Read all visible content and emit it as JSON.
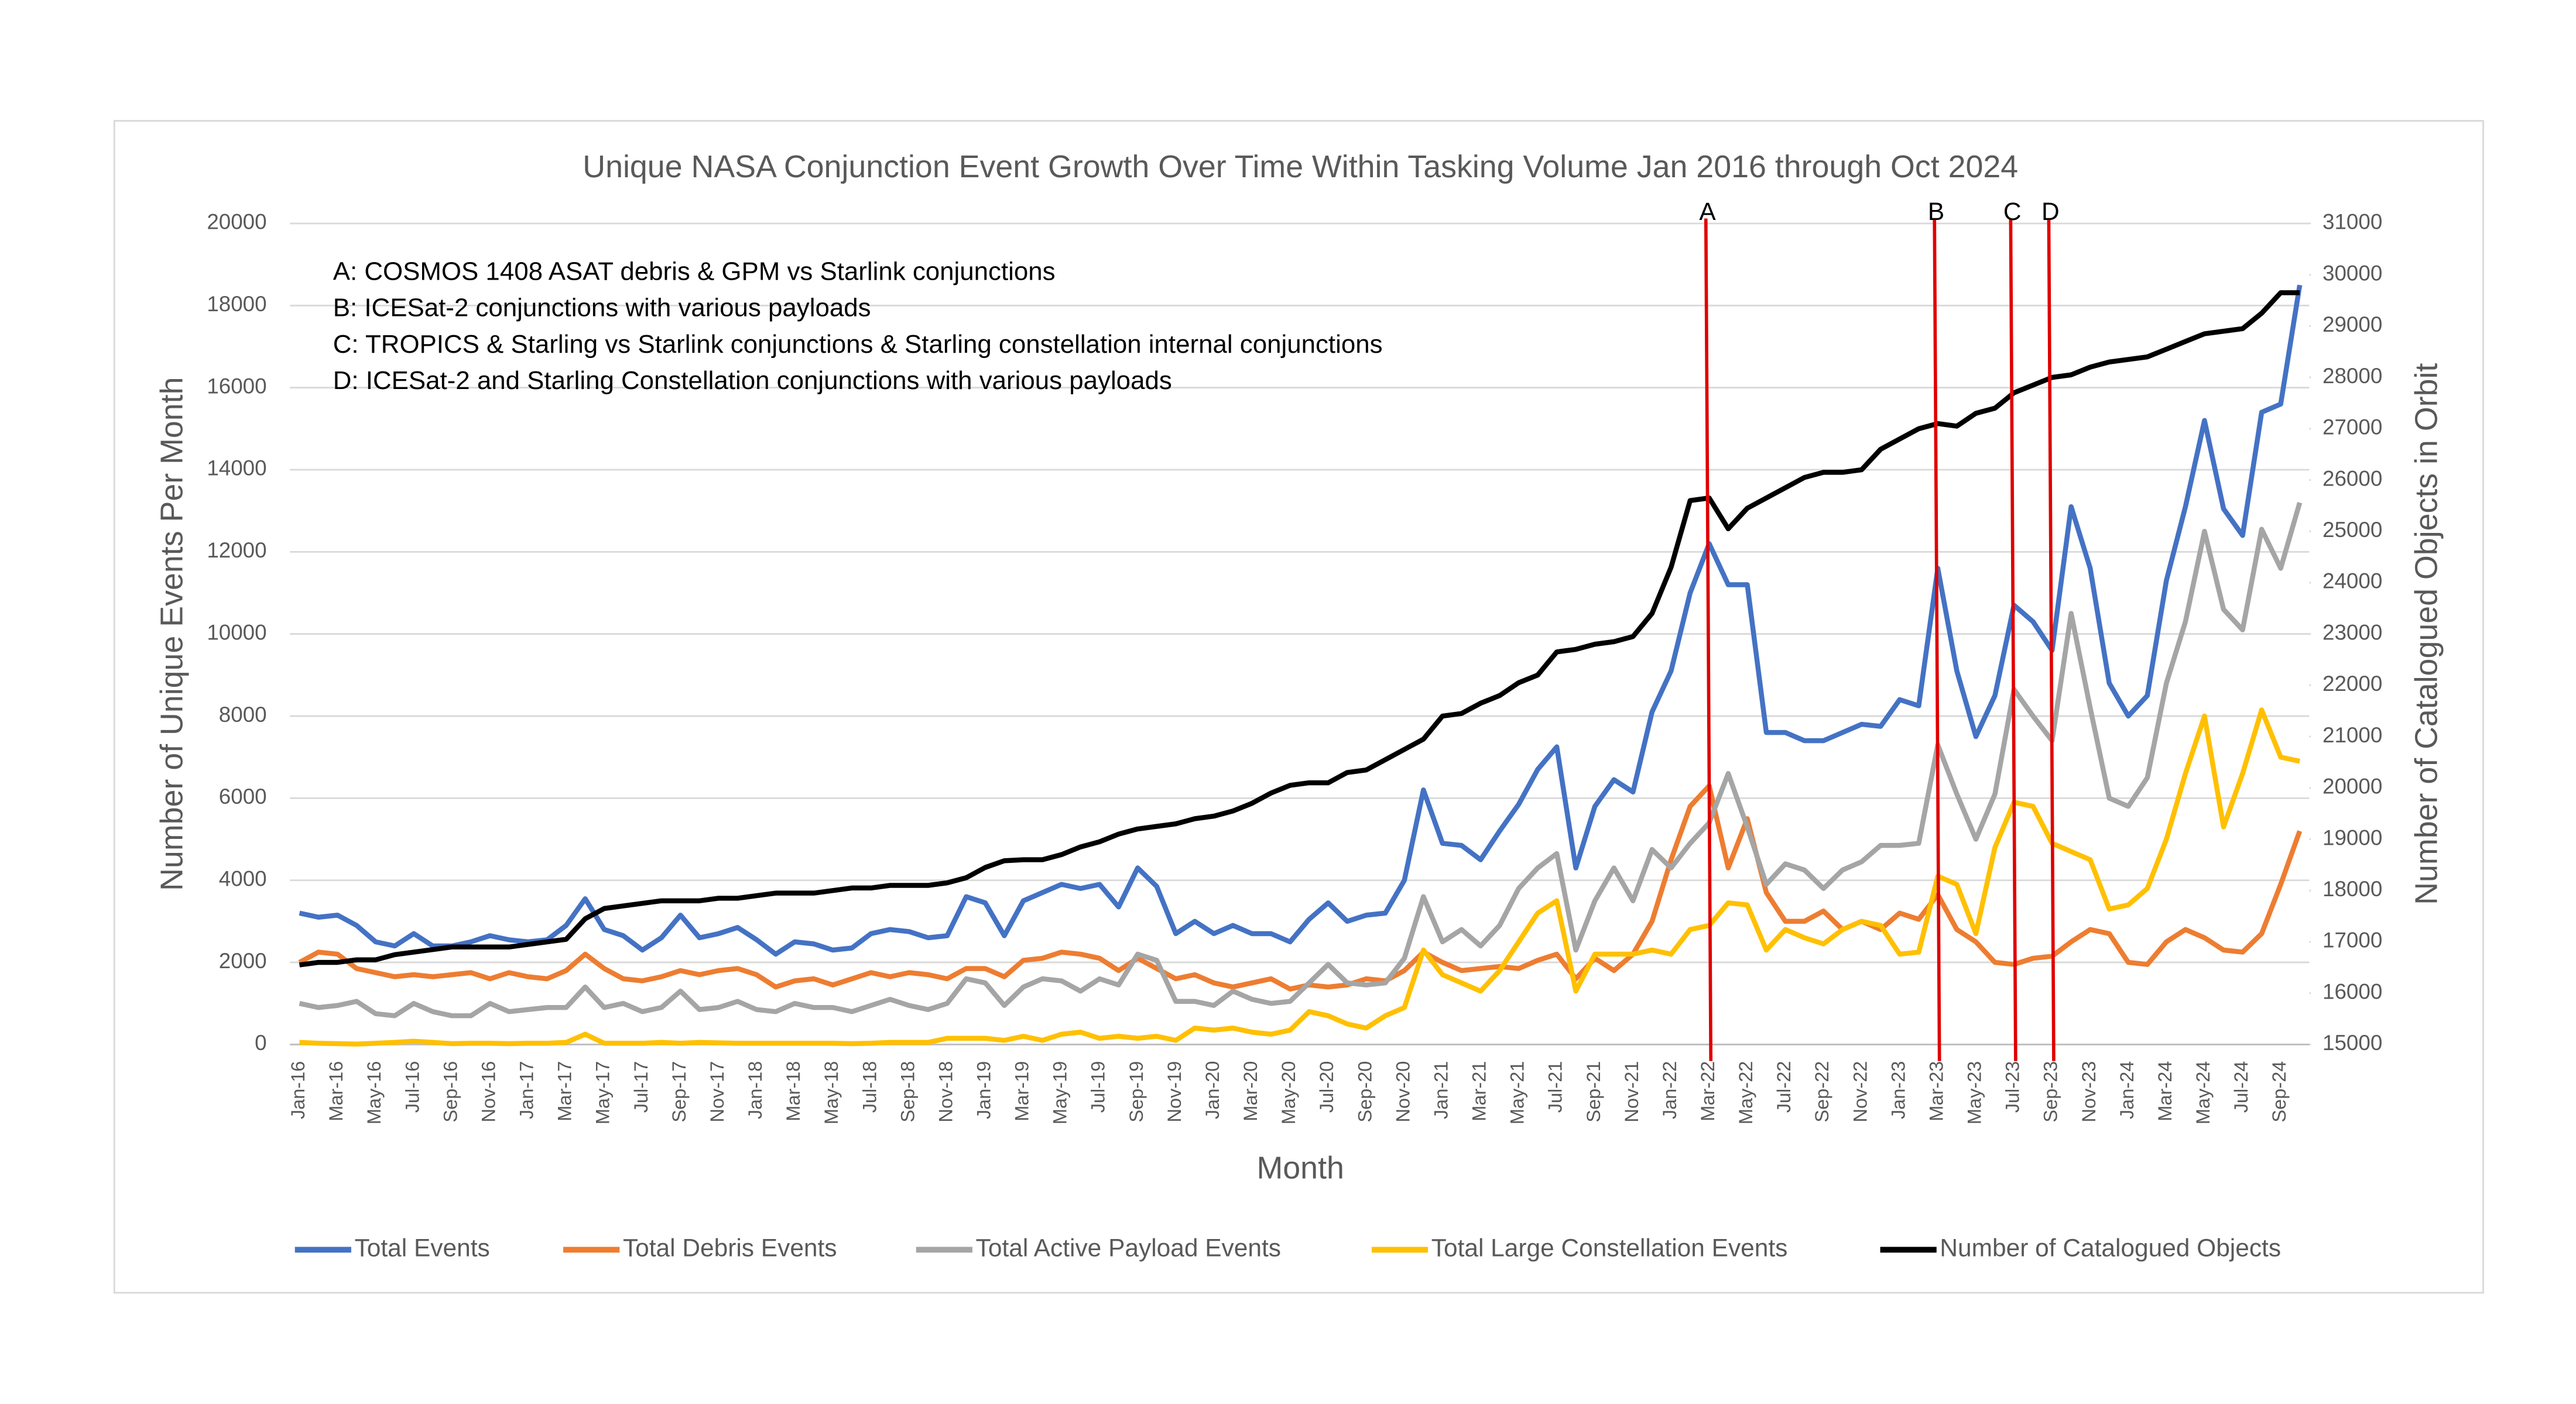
{
  "chart_data": {
    "type": "line",
    "title": "Unique NASA Conjunction Event Growth Over Time Within Tasking Volume Jan 2016 through Oct 2024",
    "x_label": "Month",
    "y_label": "Number of Unique Events Per Month",
    "y2_label": "Number of Catalogued Objects in Orbit",
    "notes": [
      "A: COSMOS 1408 ASAT debris & GPM vs Starlink conjunctions",
      "B: ICESat-2 conjunctions with various payloads",
      "C: TROPICS & Starling vs Starlink conjunctions & Starling constellation internal conjunctions",
      "D: ICESat-2 and Starling Constellation conjunctions with various payloads"
    ],
    "markers": [
      {
        "label": "A",
        "x": "Mar-22",
        "color": "#e00000"
      },
      {
        "label": "B",
        "x": "Mar-23",
        "color": "#e00000"
      },
      {
        "label": "C",
        "x": "Jul-23",
        "color": "#e00000"
      },
      {
        "label": "D",
        "x": "Sep-23",
        "color": "#e00000"
      }
    ],
    "categories": [
      "Jan-16",
      null,
      "Mar-16",
      null,
      "May-16",
      null,
      "Jul-16",
      null,
      "Sep-16",
      null,
      "Nov-16",
      null,
      "Jan-17",
      null,
      "Mar-17",
      null,
      "May-17",
      null,
      "Jul-17",
      null,
      "Sep-17",
      null,
      "Nov-17",
      null,
      "Jan-18",
      null,
      "Mar-18",
      null,
      "May-18",
      null,
      "Jul-18",
      null,
      "Sep-18",
      null,
      "Nov-18",
      null,
      "Jan-19",
      null,
      "Mar-19",
      null,
      "May-19",
      null,
      "Jul-19",
      null,
      "Sep-19",
      null,
      "Nov-19",
      null,
      "Jan-20",
      null,
      "Mar-20",
      null,
      "May-20",
      null,
      "Jul-20",
      null,
      "Sep-20",
      null,
      "Nov-20",
      null,
      "Jan-21",
      null,
      "Mar-21",
      null,
      "May-21",
      null,
      "Jul-21",
      null,
      "Sep-21",
      null,
      "Nov-21",
      null,
      "Jan-22",
      null,
      "Mar-22",
      null,
      "May-22",
      null,
      "Jul-22",
      null,
      "Sep-22",
      null,
      "Nov-22",
      null,
      "Jan-23",
      null,
      "Mar-23",
      null,
      "May-23",
      null,
      "Jul-23",
      null,
      "Sep-23",
      null,
      "Nov-23",
      null,
      "Jan-24",
      null,
      "Mar-24",
      null,
      "May-24",
      null,
      "Jul-24",
      null,
      "Sep-24",
      null
    ],
    "series": [
      {
        "name": "Total Events",
        "color": "#4472c4",
        "values": [
          3200,
          3100,
          3150,
          2900,
          2500,
          2400,
          2700,
          2400,
          2400,
          2500,
          2650,
          2550,
          2500,
          2550,
          2900,
          3550,
          2800,
          2650,
          2300,
          2600,
          3150,
          2600,
          2700,
          2850,
          2550,
          2200,
          2500,
          2450,
          2300,
          2350,
          2700,
          2800,
          2750,
          2600,
          2650,
          3600,
          3450,
          2650,
          3500,
          3700,
          3900,
          3800,
          3900,
          3350,
          4300,
          3850,
          2700,
          3000,
          2700,
          2900,
          2700,
          2700,
          2500,
          3050,
          3450,
          3000,
          3150,
          3200,
          4000,
          6200,
          4900,
          4850,
          4500,
          5200,
          5850,
          6700,
          7250,
          4300,
          5800,
          6450,
          6150,
          8100,
          9100,
          11000,
          12200,
          11200,
          11200,
          7600,
          7600,
          7400,
          7400,
          7600,
          7800,
          7750,
          8400,
          8250,
          11600,
          9100,
          7500,
          8500,
          10700,
          10300,
          9600,
          13100,
          11600,
          8800,
          8000,
          8500,
          11300,
          13100,
          15200,
          13050,
          12400,
          15400,
          15600,
          18500
        ]
      },
      {
        "name": "Total Debris Events",
        "color": "#ed7d31",
        "values": [
          2000,
          2250,
          2200,
          1850,
          1750,
          1650,
          1700,
          1650,
          1700,
          1750,
          1600,
          1750,
          1650,
          1600,
          1800,
          2200,
          1850,
          1600,
          1550,
          1650,
          1800,
          1700,
          1800,
          1850,
          1700,
          1400,
          1550,
          1600,
          1450,
          1600,
          1750,
          1650,
          1750,
          1700,
          1600,
          1850,
          1850,
          1650,
          2050,
          2100,
          2250,
          2200,
          2100,
          1800,
          2100,
          1850,
          1600,
          1700,
          1500,
          1400,
          1500,
          1600,
          1350,
          1450,
          1400,
          1450,
          1600,
          1550,
          1800,
          2250,
          2000,
          1800,
          1850,
          1900,
          1850,
          2050,
          2200,
          1600,
          2100,
          1800,
          2200,
          3000,
          4500,
          5800,
          6300,
          4300,
          5500,
          3700,
          3000,
          3000,
          3250,
          2800,
          3000,
          2800,
          3200,
          3050,
          3650,
          2800,
          2500,
          2000,
          1950,
          2100,
          2150,
          2500,
          2800,
          2700,
          2000,
          1950,
          2500,
          2800,
          2600,
          2300,
          2250,
          2700,
          3900,
          5200
        ]
      },
      {
        "name": "Total Active Payload Events",
        "color": "#a5a5a5",
        "values": [
          1000,
          900,
          950,
          1050,
          750,
          700,
          1000,
          800,
          700,
          700,
          1000,
          800,
          850,
          900,
          900,
          1400,
          900,
          1000,
          800,
          900,
          1300,
          850,
          900,
          1050,
          850,
          800,
          1000,
          900,
          900,
          800,
          950,
          1100,
          950,
          850,
          1000,
          1600,
          1500,
          950,
          1400,
          1600,
          1550,
          1300,
          1600,
          1450,
          2200,
          2050,
          1050,
          1050,
          950,
          1300,
          1100,
          1000,
          1050,
          1500,
          1950,
          1500,
          1450,
          1500,
          2100,
          3600,
          2500,
          2800,
          2400,
          2900,
          3800,
          4300,
          4650,
          2300,
          3500,
          4300,
          3500,
          4750,
          4300,
          4900,
          5400,
          6600,
          5300,
          3900,
          4400,
          4250,
          3800,
          4250,
          4450,
          4850,
          4850,
          4900,
          7300,
          6100,
          5000,
          6100,
          8650,
          8000,
          7400,
          10500,
          8200,
          6000,
          5800,
          6500,
          8800,
          10300,
          12500,
          10600,
          10100,
          12550,
          11600,
          13200
        ]
      },
      {
        "name": "Total Large Constellation Events",
        "color": "#ffc000",
        "values": [
          50,
          30,
          20,
          10,
          30,
          50,
          80,
          50,
          20,
          30,
          30,
          20,
          30,
          30,
          50,
          250,
          30,
          30,
          30,
          50,
          30,
          50,
          40,
          30,
          30,
          30,
          30,
          30,
          30,
          20,
          30,
          50,
          50,
          50,
          150,
          150,
          150,
          100,
          200,
          100,
          250,
          300,
          150,
          200,
          150,
          200,
          100,
          400,
          350,
          400,
          300,
          250,
          350,
          800,
          700,
          500,
          400,
          700,
          900,
          2300,
          1700,
          1500,
          1300,
          1800,
          2500,
          3200,
          3500,
          1300,
          2200,
          2200,
          2200,
          2300,
          2200,
          2800,
          2900,
          3450,
          3400,
          2300,
          2800,
          2600,
          2450,
          2800,
          3000,
          2900,
          2200,
          2250,
          4100,
          3900,
          2700,
          4800,
          5900,
          5800,
          4900,
          4700,
          4500,
          3300,
          3400,
          3800,
          5000,
          6600,
          8000,
          5300,
          6600,
          8150,
          7000,
          6900
        ]
      },
      {
        "name": "Number of Catalogued Objects",
        "color": "#000000",
        "axis": "y2",
        "values": [
          16550,
          16600,
          16600,
          16650,
          16650,
          16750,
          16800,
          16850,
          16900,
          16900,
          16900,
          16900,
          16950,
          17000,
          17050,
          17450,
          17650,
          17700,
          17750,
          17800,
          17800,
          17800,
          17850,
          17850,
          17900,
          17950,
          17950,
          17950,
          18000,
          18050,
          18050,
          18100,
          18100,
          18100,
          18150,
          18250,
          18450,
          18580,
          18600,
          18600,
          18700,
          18850,
          18950,
          19100,
          19200,
          19250,
          19300,
          19400,
          19450,
          19550,
          19700,
          19900,
          20050,
          20100,
          20100,
          20300,
          20350,
          20550,
          20750,
          20950,
          21400,
          21450,
          21650,
          21800,
          22050,
          22200,
          22650,
          22700,
          22800,
          22850,
          22950,
          23400,
          24300,
          25600,
          25650,
          25050,
          25450,
          25650,
          25850,
          26050,
          26150,
          26150,
          26200,
          26600,
          26800,
          27000,
          27100,
          27050,
          27300,
          27400,
          27700,
          27850,
          28000,
          28050,
          28200,
          28300,
          28350,
          28400,
          28550,
          28700,
          28850,
          28900,
          28950,
          29250,
          29650,
          29650
        ]
      }
    ],
    "ylim": [
      0,
      20000
    ],
    "yticks": [
      0,
      2000,
      4000,
      6000,
      8000,
      10000,
      12000,
      14000,
      16000,
      18000,
      20000
    ],
    "y2lim": [
      15000,
      31000
    ],
    "y2ticks": [
      15000,
      16000,
      17000,
      18000,
      19000,
      20000,
      21000,
      22000,
      23000,
      24000,
      25000,
      26000,
      27000,
      28000,
      29000,
      30000,
      31000
    ],
    "grid": true,
    "legend": "bottom"
  }
}
